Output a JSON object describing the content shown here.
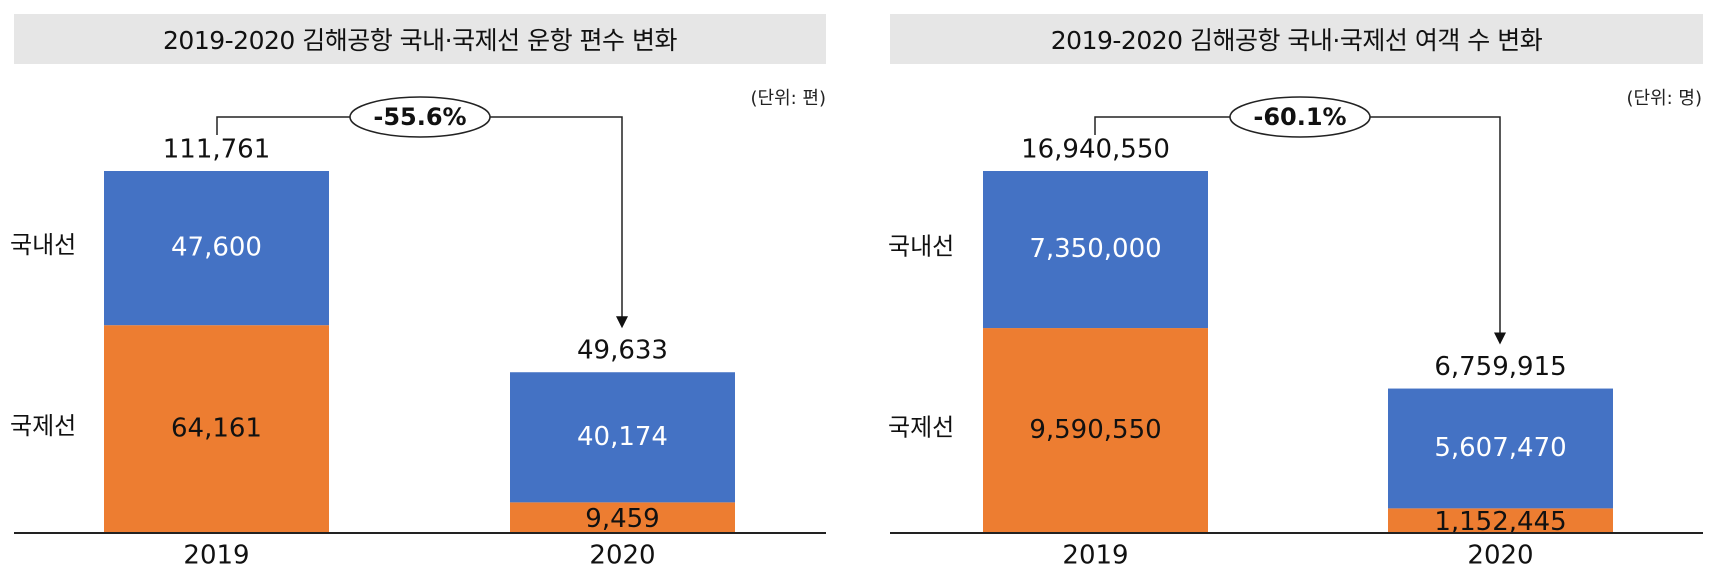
{
  "chart_data": [
    {
      "type": "bar",
      "stacked": true,
      "title": "2019-2020 김해공항 국내·국제선 운항 편수 변화",
      "unit_label": "(단위: 편)",
      "categories": [
        "2019",
        "2020"
      ],
      "series": [
        {
          "name": "국제선",
          "values": [
            64161,
            9459
          ],
          "color": "#ed7d31",
          "label_color": "#111111"
        },
        {
          "name": "국내선",
          "values": [
            47600,
            40174
          ],
          "color": "#4472c4",
          "label_color": "#ffffff"
        }
      ],
      "value_labels": [
        [
          "64,161",
          "9,459"
        ],
        [
          "47,600",
          "40,174"
        ]
      ],
      "totals": [
        111761,
        49633
      ],
      "total_labels": [
        "111,761",
        "49,633"
      ],
      "change_label": "-55.6%",
      "ylim": [
        0,
        111761
      ],
      "legend": "left"
    },
    {
      "type": "bar",
      "stacked": true,
      "title": "2019-2020 김해공항 국내·국제선 여객 수 변화",
      "unit_label": "(단위: 명)",
      "categories": [
        "2019",
        "2020"
      ],
      "series": [
        {
          "name": "국제선",
          "values": [
            9590550,
            1152445
          ],
          "color": "#ed7d31",
          "label_color": "#111111"
        },
        {
          "name": "국내선",
          "values": [
            7350000,
            5607470
          ],
          "color": "#4472c4",
          "label_color": "#ffffff"
        }
      ],
      "value_labels": [
        [
          "9,590,550",
          "1,152,445"
        ],
        [
          "7,350,000",
          "5,607,470"
        ]
      ],
      "totals": [
        16940550,
        6759915
      ],
      "total_labels": [
        "16,940,550",
        "6,759,915"
      ],
      "change_label": "-60.1%",
      "ylim": [
        0,
        16940550
      ],
      "legend": "left"
    }
  ]
}
